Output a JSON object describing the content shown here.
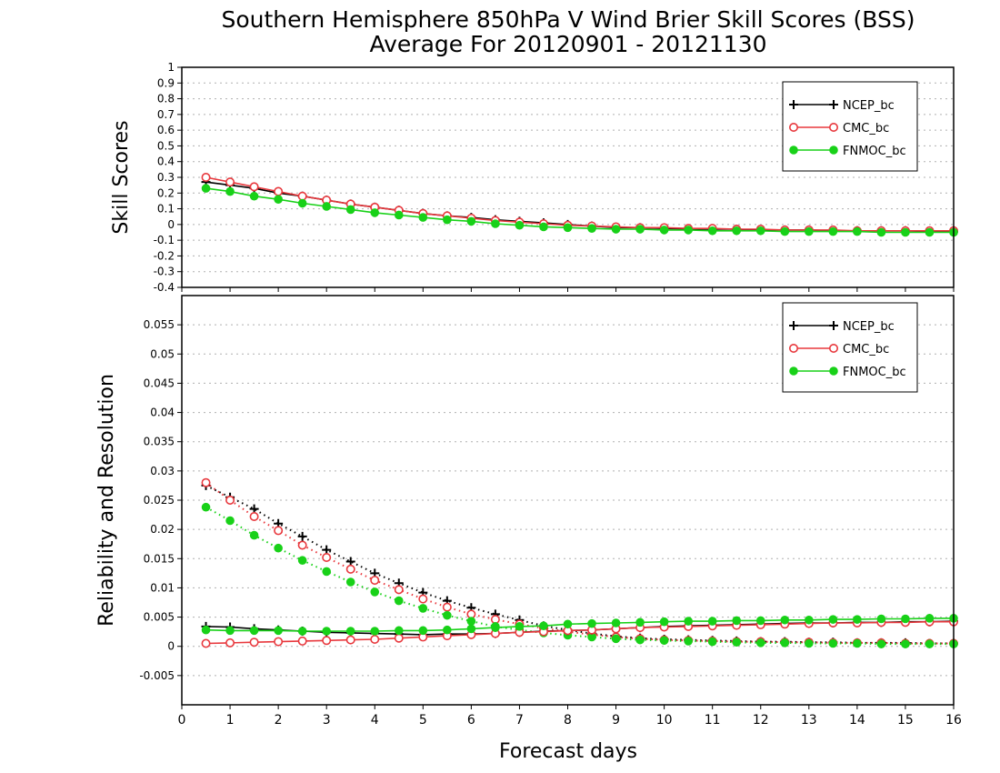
{
  "title_line1": "Southern Hemisphere 850hPa V Wind Brier Skill Scores (BSS)",
  "title_line2": "Average For 20120901 - 20121130",
  "xlabel": "Forecast days",
  "colors": {
    "NCEP_bc": "#000000",
    "CMC_bc": "#e8383d",
    "FNMOC_bc": "#18d118",
    "grid": "#b0b0b0"
  },
  "chart_data": [
    {
      "type": "line",
      "panel": "top",
      "ylabel": "Skill Scores",
      "ylim": [
        -0.4,
        1.0
      ],
      "yticks": [
        "-0.4",
        "-0.3",
        "-0.2",
        "-0.1",
        "0",
        "0.1",
        "0.2",
        "0.3",
        "0.4",
        "0.5",
        "0.6",
        "0.7",
        "0.8",
        "0.9",
        "1"
      ],
      "xlim": [
        0,
        16
      ],
      "grid": true,
      "legend_position": "top-right",
      "x": [
        0.5,
        1,
        1.5,
        2,
        2.5,
        3,
        3.5,
        4,
        4.5,
        5,
        5.5,
        6,
        6.5,
        7,
        7.5,
        8,
        8.5,
        9,
        9.5,
        10,
        10.5,
        11,
        11.5,
        12,
        12.5,
        13,
        13.5,
        14,
        14.5,
        15,
        15.5,
        16
      ],
      "series": [
        {
          "name": "NCEP_bc",
          "marker": "plus",
          "style": "solid",
          "values": [
            0.27,
            0.25,
            0.23,
            0.2,
            0.18,
            0.155,
            0.13,
            0.11,
            0.09,
            0.07,
            0.055,
            0.045,
            0.03,
            0.02,
            0.01,
            0.0,
            -0.01,
            -0.02,
            -0.02,
            -0.025,
            -0.03,
            -0.03,
            -0.03,
            -0.035,
            -0.035,
            -0.035,
            -0.04,
            -0.04,
            -0.04,
            -0.04,
            -0.045,
            -0.045
          ]
        },
        {
          "name": "CMC_bc",
          "marker": "open-circle",
          "style": "solid",
          "values": [
            0.3,
            0.27,
            0.24,
            0.21,
            0.18,
            0.155,
            0.13,
            0.11,
            0.09,
            0.07,
            0.055,
            0.04,
            0.025,
            0.015,
            0.005,
            -0.005,
            -0.01,
            -0.015,
            -0.02,
            -0.02,
            -0.025,
            -0.025,
            -0.03,
            -0.03,
            -0.035,
            -0.035,
            -0.035,
            -0.04,
            -0.04,
            -0.04,
            -0.04,
            -0.04
          ]
        },
        {
          "name": "FNMOC_bc",
          "marker": "filled-circle",
          "style": "solid",
          "values": [
            0.23,
            0.21,
            0.18,
            0.16,
            0.135,
            0.115,
            0.095,
            0.075,
            0.06,
            0.045,
            0.03,
            0.02,
            0.005,
            -0.005,
            -0.015,
            -0.02,
            -0.025,
            -0.03,
            -0.03,
            -0.035,
            -0.035,
            -0.04,
            -0.04,
            -0.04,
            -0.045,
            -0.045,
            -0.045,
            -0.045,
            -0.05,
            -0.05,
            -0.05,
            -0.05
          ]
        }
      ]
    },
    {
      "type": "line",
      "panel": "bottom",
      "ylabel": "Reliability and Resolution",
      "ylim": [
        -0.01,
        0.06
      ],
      "yticks": [
        "-0.005",
        "0",
        "0.005",
        "0.01",
        "0.015",
        "0.02",
        "0.025",
        "0.03",
        "0.035",
        "0.04",
        "0.045",
        "0.05",
        "0.055"
      ],
      "xlim": [
        0,
        16
      ],
      "xticks": [
        "0",
        "1",
        "2",
        "3",
        "4",
        "5",
        "6",
        "7",
        "8",
        "9",
        "10",
        "11",
        "12",
        "13",
        "14",
        "15",
        "16"
      ],
      "grid": true,
      "legend_position": "top-right",
      "x": [
        0.5,
        1,
        1.5,
        2,
        2.5,
        3,
        3.5,
        4,
        4.5,
        5,
        5.5,
        6,
        6.5,
        7,
        7.5,
        8,
        8.5,
        9,
        9.5,
        10,
        10.5,
        11,
        11.5,
        12,
        12.5,
        13,
        13.5,
        14,
        14.5,
        15,
        15.5,
        16
      ],
      "series": [
        {
          "name": "NCEP_bc",
          "marker": "plus",
          "style": "dotted",
          "values": [
            0.0275,
            0.0255,
            0.0235,
            0.021,
            0.0188,
            0.0165,
            0.0145,
            0.0125,
            0.0108,
            0.0092,
            0.0078,
            0.0066,
            0.0055,
            0.0045,
            0.0035,
            0.0028,
            0.0022,
            0.0017,
            0.0014,
            0.0012,
            0.0011,
            0.001,
            0.0009,
            0.0008,
            0.0008,
            0.0007,
            0.0007,
            0.0006,
            0.0006,
            0.0006,
            0.0005,
            0.0005
          ]
        },
        {
          "name": "CMC_bc",
          "marker": "open-circle",
          "style": "dotted",
          "values": [
            0.028,
            0.025,
            0.0222,
            0.0198,
            0.0173,
            0.0152,
            0.0132,
            0.0113,
            0.0097,
            0.0081,
            0.0067,
            0.0055,
            0.0046,
            0.0038,
            0.0031,
            0.0025,
            0.002,
            0.0016,
            0.0013,
            0.0011,
            0.001,
            0.0009,
            0.0008,
            0.0008,
            0.0007,
            0.0007,
            0.0006,
            0.0006,
            0.0006,
            0.0005,
            0.0005,
            0.0005
          ]
        },
        {
          "name": "FNMOC_bc",
          "marker": "filled-circle",
          "style": "dotted",
          "values": [
            0.0238,
            0.0215,
            0.019,
            0.0168,
            0.0147,
            0.0128,
            0.011,
            0.0093,
            0.0078,
            0.0065,
            0.0053,
            0.0043,
            0.0034,
            0.0028,
            0.0023,
            0.0019,
            0.0016,
            0.0013,
            0.0011,
            0.001,
            0.0009,
            0.0008,
            0.0007,
            0.0006,
            0.0006,
            0.0005,
            0.0005,
            0.0005,
            0.0004,
            0.0004,
            0.0004,
            0.0004
          ]
        },
        {
          "name": "NCEP_bc",
          "marker": "plus",
          "style": "solid",
          "values": [
            0.0034,
            0.0033,
            0.003,
            0.0028,
            0.0026,
            0.0024,
            0.0023,
            0.0022,
            0.0021,
            0.002,
            0.0021,
            0.0021,
            0.0022,
            0.0024,
            0.0026,
            0.0027,
            0.0028,
            0.003,
            0.0032,
            0.0034,
            0.0035,
            0.0036,
            0.0037,
            0.0038,
            0.0039,
            0.004,
            0.004,
            0.0041,
            0.0041,
            0.0042,
            0.0042,
            0.0043
          ]
        },
        {
          "name": "CMC_bc",
          "marker": "open-circle",
          "style": "solid",
          "values": [
            0.0005,
            0.0006,
            0.0007,
            0.0008,
            0.0009,
            0.001,
            0.0011,
            0.0012,
            0.0014,
            0.0016,
            0.0018,
            0.002,
            0.0022,
            0.0024,
            0.0025,
            0.0027,
            0.0028,
            0.003,
            0.0032,
            0.0033,
            0.0034,
            0.0035,
            0.0036,
            0.0037,
            0.0038,
            0.0039,
            0.004,
            0.004,
            0.0041,
            0.0041,
            0.0042,
            0.0042
          ]
        },
        {
          "name": "FNMOC_bc",
          "marker": "filled-circle",
          "style": "solid",
          "values": [
            0.0028,
            0.0027,
            0.0027,
            0.0027,
            0.0026,
            0.0026,
            0.0026,
            0.0026,
            0.0027,
            0.0027,
            0.0028,
            0.003,
            0.0032,
            0.0034,
            0.0035,
            0.0038,
            0.0039,
            0.004,
            0.0041,
            0.0042,
            0.0043,
            0.0043,
            0.0044,
            0.0044,
            0.0045,
            0.0045,
            0.0046,
            0.0046,
            0.0047,
            0.0047,
            0.0048,
            0.0048
          ]
        }
      ]
    }
  ]
}
